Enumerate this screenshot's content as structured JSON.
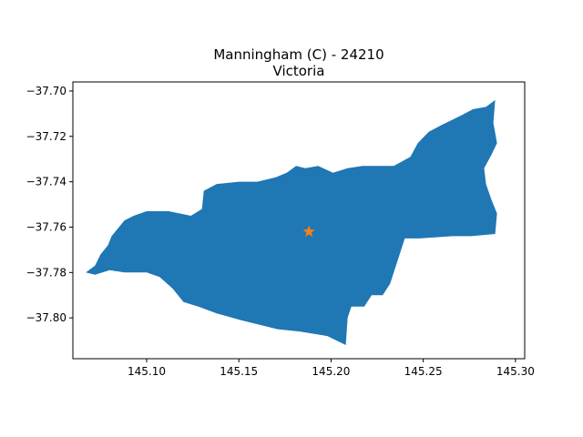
{
  "map": {
    "title_line1": "Manningham (C) - 24210",
    "title_line2": "Victoria",
    "fill_color": "#1f77b4",
    "marker_color": "#ff7f0e",
    "marker_icon": "star-icon",
    "xlim": [
      145.06,
      145.305
    ],
    "ylim": [
      -37.818,
      -37.696
    ],
    "x_ticks": [
      145.1,
      145.15,
      145.2,
      145.25,
      145.3
    ],
    "x_tick_labels": [
      "145.10",
      "145.15",
      "145.20",
      "145.25",
      "145.30"
    ],
    "y_ticks": [
      -37.7,
      -37.72,
      -37.74,
      -37.76,
      -37.78,
      -37.8
    ],
    "y_tick_labels": [
      "−37.70",
      "−37.72",
      "−37.74",
      "−37.76",
      "−37.78",
      "−37.80"
    ],
    "marker": {
      "lon": 145.188,
      "lat": -37.762
    },
    "boundary": [
      [
        145.067,
        -37.78
      ],
      [
        145.072,
        -37.777
      ],
      [
        145.075,
        -37.772
      ],
      [
        145.079,
        -37.768
      ],
      [
        145.081,
        -37.764
      ],
      [
        145.085,
        -37.76
      ],
      [
        145.088,
        -37.757
      ],
      [
        145.093,
        -37.755
      ],
      [
        145.1,
        -37.753
      ],
      [
        145.112,
        -37.753
      ],
      [
        145.124,
        -37.755
      ],
      [
        145.13,
        -37.752
      ],
      [
        145.131,
        -37.744
      ],
      [
        145.138,
        -37.741
      ],
      [
        145.15,
        -37.74
      ],
      [
        145.16,
        -37.74
      ],
      [
        145.17,
        -37.738
      ],
      [
        145.176,
        -37.736
      ],
      [
        145.181,
        -37.733
      ],
      [
        145.186,
        -37.734
      ],
      [
        145.193,
        -37.733
      ],
      [
        145.201,
        -37.736
      ],
      [
        145.209,
        -37.734
      ],
      [
        145.217,
        -37.733
      ],
      [
        145.226,
        -37.733
      ],
      [
        145.234,
        -37.733
      ],
      [
        145.243,
        -37.729
      ],
      [
        145.247,
        -37.723
      ],
      [
        145.253,
        -37.718
      ],
      [
        145.26,
        -37.715
      ],
      [
        145.27,
        -37.711
      ],
      [
        145.277,
        -37.708
      ],
      [
        145.284,
        -37.707
      ],
      [
        145.289,
        -37.704
      ],
      [
        145.288,
        -37.714
      ],
      [
        145.29,
        -37.723
      ],
      [
        145.287,
        -37.728
      ],
      [
        145.283,
        -37.734
      ],
      [
        145.284,
        -37.741
      ],
      [
        145.287,
        -37.748
      ],
      [
        145.29,
        -37.754
      ],
      [
        145.289,
        -37.763
      ],
      [
        145.276,
        -37.764
      ],
      [
        145.266,
        -37.764
      ],
      [
        145.248,
        -37.765
      ],
      [
        145.24,
        -37.765
      ],
      [
        145.232,
        -37.785
      ],
      [
        145.228,
        -37.79
      ],
      [
        145.222,
        -37.79
      ],
      [
        145.218,
        -37.795
      ],
      [
        145.211,
        -37.795
      ],
      [
        145.209,
        -37.8
      ],
      [
        145.208,
        -37.812
      ],
      [
        145.198,
        -37.808
      ],
      [
        145.183,
        -37.806
      ],
      [
        145.171,
        -37.805
      ],
      [
        145.161,
        -37.803
      ],
      [
        145.151,
        -37.801
      ],
      [
        145.138,
        -37.798
      ],
      [
        145.128,
        -37.795
      ],
      [
        145.12,
        -37.793
      ],
      [
        145.114,
        -37.787
      ],
      [
        145.107,
        -37.782
      ],
      [
        145.1,
        -37.78
      ],
      [
        145.088,
        -37.78
      ],
      [
        145.08,
        -37.779
      ],
      [
        145.072,
        -37.781
      ],
      [
        145.067,
        -37.78
      ]
    ]
  }
}
